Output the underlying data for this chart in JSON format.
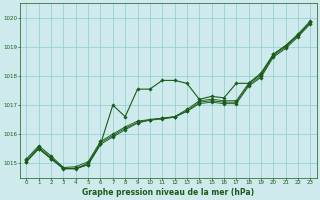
{
  "title": "Graphe pression niveau de la mer (hPa)",
  "bg_color": "#ceeaec",
  "line_color": "#1a5c1a",
  "marker_color": "#1a5c1a",
  "grid_color": "#8ecece",
  "axis_label_color": "#1a5c1a",
  "tick_label_color": "#1a5c1a",
  "xlim": [
    -0.5,
    23.5
  ],
  "ylim": [
    1014.5,
    1020.5
  ],
  "yticks": [
    1015,
    1016,
    1017,
    1018,
    1019,
    1020
  ],
  "xticks": [
    0,
    1,
    2,
    3,
    4,
    5,
    6,
    7,
    8,
    9,
    10,
    11,
    12,
    13,
    14,
    15,
    16,
    17,
    18,
    19,
    20,
    21,
    22,
    23
  ],
  "series": [
    [
      1015.15,
      1015.6,
      1015.25,
      1014.85,
      1014.88,
      1015.05,
      1015.75,
      1016.0,
      1016.25,
      1016.45,
      1016.5,
      1016.55,
      1016.6,
      1016.85,
      1017.15,
      1017.2,
      1017.15,
      1017.15,
      1017.75,
      1018.05,
      1018.75,
      1019.05,
      1019.45,
      1019.9
    ],
    [
      1015.1,
      1015.55,
      1015.2,
      1014.82,
      1014.82,
      1015.0,
      1015.7,
      1015.95,
      1016.2,
      1016.4,
      1016.5,
      1016.55,
      1016.6,
      1016.8,
      1017.1,
      1017.15,
      1017.1,
      1017.1,
      1017.7,
      1018.0,
      1018.7,
      1019.0,
      1019.4,
      1019.85
    ],
    [
      1015.05,
      1015.5,
      1015.15,
      1014.8,
      1014.8,
      1014.95,
      1015.65,
      1015.9,
      1016.15,
      1016.38,
      1016.48,
      1016.52,
      1016.58,
      1016.78,
      1017.05,
      1017.1,
      1017.05,
      1017.05,
      1017.65,
      1017.95,
      1018.65,
      1018.95,
      1019.35,
      1019.8
    ],
    [
      1015.05,
      1015.5,
      1015.15,
      1014.82,
      1014.82,
      1014.95,
      1015.65,
      1017.0,
      1016.6,
      1017.55,
      1017.55,
      1017.85,
      1017.85,
      1017.75,
      1017.2,
      1017.3,
      1017.25,
      1017.75,
      1017.75,
      1018.1,
      1018.75,
      1019.05,
      1019.4,
      1019.85
    ]
  ]
}
